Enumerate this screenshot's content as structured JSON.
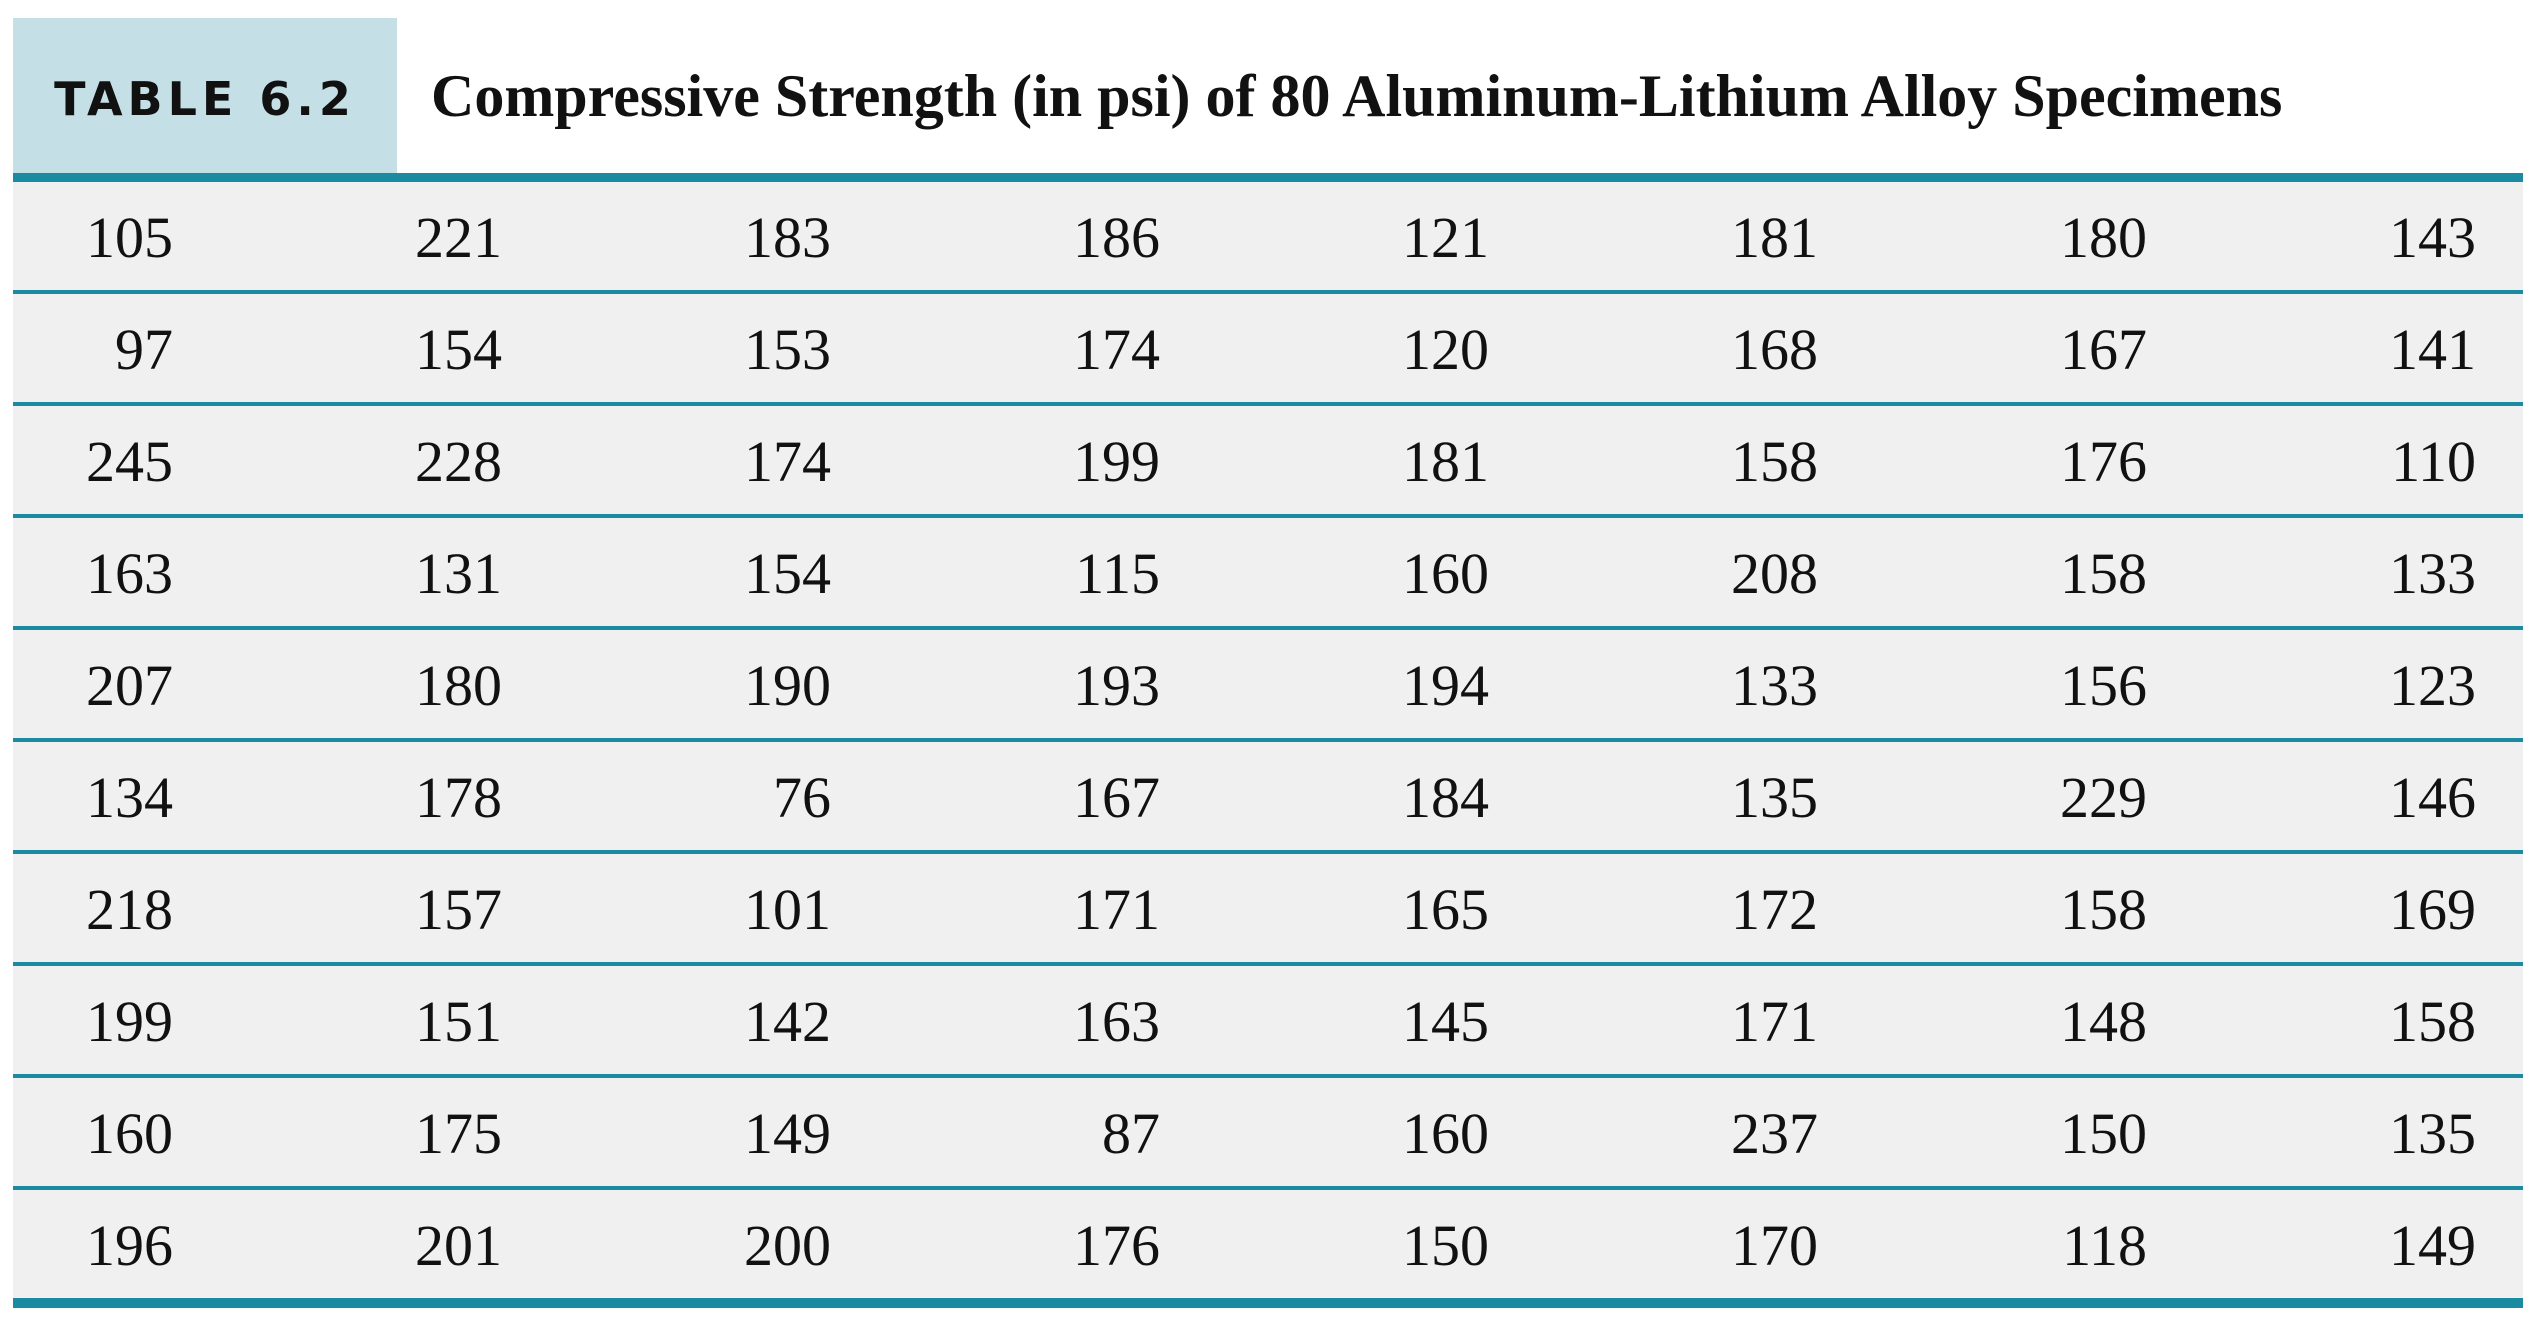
{
  "table": {
    "label": "TABLE 6.2",
    "title": "Compressive Strength (in psi) of 80 Aluminum-Lithium Alloy Specimens",
    "rows": [
      [
        "105",
        "221",
        "183",
        "186",
        "121",
        "181",
        "180",
        "143"
      ],
      [
        "97",
        "154",
        "153",
        "174",
        "120",
        "168",
        "167",
        "141"
      ],
      [
        "245",
        "228",
        "174",
        "199",
        "181",
        "158",
        "176",
        "110"
      ],
      [
        "163",
        "131",
        "154",
        "115",
        "160",
        "208",
        "158",
        "133"
      ],
      [
        "207",
        "180",
        "190",
        "193",
        "194",
        "133",
        "156",
        "123"
      ],
      [
        "134",
        "178",
        "76",
        "167",
        "184",
        "135",
        "229",
        "146"
      ],
      [
        "218",
        "157",
        "101",
        "171",
        "165",
        "172",
        "158",
        "169"
      ],
      [
        "199",
        "151",
        "142",
        "163",
        "145",
        "171",
        "148",
        "158"
      ],
      [
        "160",
        "175",
        "149",
        "87",
        "160",
        "237",
        "150",
        "135"
      ],
      [
        "196",
        "201",
        "200",
        "176",
        "150",
        "170",
        "118",
        "149"
      ]
    ]
  },
  "colors": {
    "label_bg": "#c4dfe6",
    "rule": "#1a8ba0",
    "row_bg": "#f0f0f0",
    "text": "#111111"
  }
}
